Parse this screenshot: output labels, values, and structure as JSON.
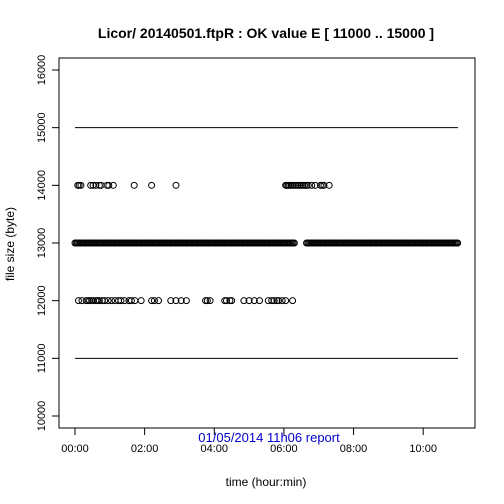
{
  "chart_data": {
    "type": "scatter",
    "title": "Licor/ 20140501.ftpR : OK value E [ 11000  ..  15000 ]",
    "xlabel": "time (hour:min)",
    "ylabel": "file size (byte)",
    "xlim": [
      0,
      11
    ],
    "ylim": [
      10000,
      16000
    ],
    "x_ticks": [
      {
        "value": 0,
        "label": "00:00"
      },
      {
        "value": 2,
        "label": "02:00"
      },
      {
        "value": 4,
        "label": "04:00"
      },
      {
        "value": 6,
        "label": "06:00"
      },
      {
        "value": 8,
        "label": "08:00"
      },
      {
        "value": 10,
        "label": "10:00"
      }
    ],
    "y_ticks": [
      10000,
      11000,
      12000,
      13000,
      14000,
      15000,
      16000
    ],
    "grid": false,
    "reference_lines": [
      11000,
      15000
    ],
    "series": [
      {
        "points_14000": [
          0.08,
          0.12,
          0.17,
          0.45,
          0.52,
          0.6,
          0.7,
          0.75,
          0.92,
          0.97,
          1.1,
          1.7,
          2.2,
          2.9,
          6.05,
          6.08,
          6.12,
          6.15,
          6.2,
          6.25,
          6.3,
          6.35,
          6.4,
          6.45,
          6.5,
          6.55,
          6.6,
          6.65,
          6.7,
          6.8,
          6.9,
          7.05,
          7.1,
          7.15,
          7.3
        ],
        "points_12000": [
          0.1,
          0.2,
          0.32,
          0.38,
          0.42,
          0.48,
          0.52,
          0.6,
          0.65,
          0.7,
          0.78,
          0.85,
          0.95,
          1.05,
          1.15,
          1.25,
          1.32,
          1.42,
          1.55,
          1.62,
          1.72,
          1.9,
          2.2,
          2.28,
          2.4,
          2.75,
          2.9,
          3.05,
          3.2,
          3.75,
          3.8,
          3.88,
          4.3,
          4.35,
          4.45,
          4.5,
          4.85,
          5.0,
          5.15,
          5.3,
          5.55,
          5.65,
          5.72,
          5.8,
          5.85,
          5.95,
          6.05,
          6.25
        ],
        "band_13000": [
          [
            0.0,
            6.3
          ],
          [
            6.65,
            11.0
          ]
        ]
      }
    ]
  },
  "footer": {
    "report": "01/05/2014 11h06 report"
  }
}
